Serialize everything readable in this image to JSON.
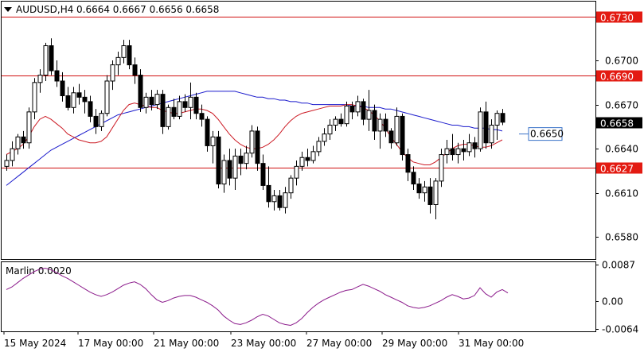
{
  "header": {
    "symbol_timeframe": "AUDUSD,H4",
    "ohlc": "0.6664 0.6667 0.6656 0.6658"
  },
  "indicator": {
    "label": "Marlin 0.0020"
  },
  "colors": {
    "candle": "#000000",
    "ma_blue": "#1a1acc",
    "ma_red": "#cc1a24",
    "level_line": "#d01010",
    "level_label_bg": "#e31b12",
    "current_price_bg": "#000000",
    "annotation": "#3a73c8",
    "oscillator": "#8b1a8b",
    "grid": "#000000"
  },
  "chart_data": [
    {
      "type": "candlestick",
      "title": "AUDUSD,H4",
      "ylim": [
        0.6565,
        0.674
      ],
      "y_tick_labels": [
        "0.6580",
        "0.6610",
        "0.6640",
        "0.6670",
        "0.6700"
      ],
      "x_tick_labels": [
        "15 May 2024",
        "17 May 00:00",
        "21 May 00:00",
        "23 May 00:00",
        "27 May 00:00",
        "29 May 00:00",
        "31 May 00:00"
      ],
      "horizontal_levels": [
        {
          "label": "0.6730",
          "value": 0.673
        },
        {
          "label": "0.6690",
          "value": 0.669
        },
        {
          "label": "0.6627",
          "value": 0.6627
        }
      ],
      "current_price": {
        "label": "0.6658",
        "value": 0.6658
      },
      "annotation": {
        "label": "0.6650",
        "value": 0.665
      },
      "candles": [
        [
          0.6628,
          0.6636,
          0.6625,
          0.6632
        ],
        [
          0.6632,
          0.6645,
          0.6628,
          0.664
        ],
        [
          0.664,
          0.665,
          0.6636,
          0.6648
        ],
        [
          0.6648,
          0.6652,
          0.664,
          0.6644
        ],
        [
          0.6644,
          0.6668,
          0.664,
          0.6665
        ],
        [
          0.6665,
          0.6688,
          0.666,
          0.6685
        ],
        [
          0.6685,
          0.6694,
          0.6678,
          0.669
        ],
        [
          0.669,
          0.6712,
          0.6686,
          0.671
        ],
        [
          0.671,
          0.6715,
          0.669,
          0.6693
        ],
        [
          0.6693,
          0.67,
          0.6682,
          0.6686
        ],
        [
          0.6686,
          0.6692,
          0.6672,
          0.6676
        ],
        [
          0.6676,
          0.6682,
          0.6666,
          0.6668
        ],
        [
          0.6668,
          0.6682,
          0.6664,
          0.6678
        ],
        [
          0.6678,
          0.6684,
          0.667,
          0.6675
        ],
        [
          0.6675,
          0.668,
          0.6664,
          0.6672
        ],
        [
          0.6672,
          0.6676,
          0.6658,
          0.6662
        ],
        [
          0.6662,
          0.6667,
          0.665,
          0.6655
        ],
        [
          0.6655,
          0.6666,
          0.6652,
          0.6664
        ],
        [
          0.6664,
          0.669,
          0.6662,
          0.6686
        ],
        [
          0.6686,
          0.67,
          0.668,
          0.6697
        ],
        [
          0.6697,
          0.6706,
          0.669,
          0.6702
        ],
        [
          0.6702,
          0.6714,
          0.6698,
          0.671
        ],
        [
          0.671,
          0.6714,
          0.6694,
          0.6697
        ],
        [
          0.6697,
          0.6702,
          0.6684,
          0.669
        ],
        [
          0.669,
          0.6694,
          0.6665,
          0.6668
        ],
        [
          0.6668,
          0.6678,
          0.6664,
          0.6675
        ],
        [
          0.6675,
          0.668,
          0.6666,
          0.667
        ],
        [
          0.667,
          0.668,
          0.6667,
          0.6677
        ],
        [
          0.6677,
          0.668,
          0.665,
          0.6655
        ],
        [
          0.6655,
          0.667,
          0.6653,
          0.6668
        ],
        [
          0.6668,
          0.6674,
          0.666,
          0.6662
        ],
        [
          0.6662,
          0.6676,
          0.666,
          0.6672
        ],
        [
          0.6672,
          0.6677,
          0.6665,
          0.6668
        ],
        [
          0.6668,
          0.6685,
          0.666,
          0.6675
        ],
        [
          0.6675,
          0.6678,
          0.666,
          0.6664
        ],
        [
          0.6664,
          0.667,
          0.6655,
          0.666
        ],
        [
          0.666,
          0.6662,
          0.6638,
          0.6642
        ],
        [
          0.6642,
          0.6652,
          0.663,
          0.6648
        ],
        [
          0.6648,
          0.6652,
          0.6613,
          0.6616
        ],
        [
          0.6616,
          0.6636,
          0.661,
          0.6632
        ],
        [
          0.6632,
          0.664,
          0.6615,
          0.662
        ],
        [
          0.662,
          0.664,
          0.6612,
          0.6635
        ],
        [
          0.6635,
          0.664,
          0.6622,
          0.663
        ],
        [
          0.663,
          0.6642,
          0.6626,
          0.6637
        ],
        [
          0.6637,
          0.6656,
          0.6634,
          0.6652
        ],
        [
          0.6652,
          0.6655,
          0.6625,
          0.663
        ],
        [
          0.663,
          0.6636,
          0.6612,
          0.6615
        ],
        [
          0.6615,
          0.6628,
          0.66,
          0.6604
        ],
        [
          0.6604,
          0.6612,
          0.6598,
          0.6608
        ],
        [
          0.6608,
          0.6612,
          0.6598,
          0.66
        ],
        [
          0.66,
          0.6614,
          0.6596,
          0.661
        ],
        [
          0.661,
          0.6622,
          0.6606,
          0.662
        ],
        [
          0.662,
          0.6632,
          0.6615,
          0.6628
        ],
        [
          0.6628,
          0.6638,
          0.6625,
          0.6634
        ],
        [
          0.6634,
          0.664,
          0.6628,
          0.6632
        ],
        [
          0.6632,
          0.6642,
          0.663,
          0.6638
        ],
        [
          0.6638,
          0.6648,
          0.6635,
          0.6645
        ],
        [
          0.6645,
          0.6654,
          0.6642,
          0.665
        ],
        [
          0.665,
          0.666,
          0.6646,
          0.6656
        ],
        [
          0.6656,
          0.6662,
          0.6652,
          0.666
        ],
        [
          0.666,
          0.6664,
          0.6655,
          0.6657
        ],
        [
          0.6657,
          0.6672,
          0.6655,
          0.6669
        ],
        [
          0.6669,
          0.6672,
          0.666,
          0.6665
        ],
        [
          0.6665,
          0.6676,
          0.6662,
          0.6672
        ],
        [
          0.6672,
          0.6674,
          0.6656,
          0.666
        ],
        [
          0.666,
          0.668,
          0.6652,
          0.6666
        ],
        [
          0.6666,
          0.667,
          0.6646,
          0.6652
        ],
        [
          0.6652,
          0.6664,
          0.664,
          0.666
        ],
        [
          0.666,
          0.6664,
          0.6648,
          0.6652
        ],
        [
          0.6652,
          0.6654,
          0.664,
          0.6644
        ],
        [
          0.6644,
          0.6668,
          0.6642,
          0.6662
        ],
        [
          0.6662,
          0.6664,
          0.6632,
          0.6636
        ],
        [
          0.6636,
          0.664,
          0.6618,
          0.6624
        ],
        [
          0.6624,
          0.6628,
          0.6612,
          0.6616
        ],
        [
          0.6616,
          0.662,
          0.6606,
          0.661
        ],
        [
          0.661,
          0.6618,
          0.6604,
          0.6614
        ],
        [
          0.6614,
          0.662,
          0.6596,
          0.6602
        ],
        [
          0.6602,
          0.662,
          0.6592,
          0.6618
        ],
        [
          0.6618,
          0.664,
          0.6614,
          0.6636
        ],
        [
          0.6636,
          0.6646,
          0.663,
          0.664
        ],
        [
          0.664,
          0.665,
          0.6632,
          0.6636
        ],
        [
          0.6636,
          0.6644,
          0.663,
          0.664
        ],
        [
          0.664,
          0.6646,
          0.6632,
          0.6638
        ],
        [
          0.6638,
          0.665,
          0.6635,
          0.6644
        ],
        [
          0.6644,
          0.6648,
          0.6634,
          0.664
        ],
        [
          0.664,
          0.6668,
          0.6638,
          0.6665
        ],
        [
          0.6665,
          0.6672,
          0.664,
          0.6644
        ],
        [
          0.6644,
          0.666,
          0.664,
          0.6656
        ],
        [
          0.6656,
          0.6666,
          0.6646,
          0.6664
        ],
        [
          0.6664,
          0.6667,
          0.6656,
          0.6658
        ]
      ],
      "ma_blue": [
        0.6615,
        0.6618,
        0.6621,
        0.6624,
        0.6627,
        0.663,
        0.6633,
        0.6636,
        0.6639,
        0.6641,
        0.6643,
        0.6645,
        0.6647,
        0.6649,
        0.6651,
        0.6653,
        0.6655,
        0.6657,
        0.6659,
        0.6661,
        0.6663,
        0.6664,
        0.6665,
        0.6666,
        0.6667,
        0.6668,
        0.6669,
        0.667,
        0.6671,
        0.6672,
        0.6673,
        0.6674,
        0.6675,
        0.6676,
        0.6677,
        0.6678,
        0.6679,
        0.6679,
        0.6679,
        0.6679,
        0.6679,
        0.6679,
        0.6678,
        0.6677,
        0.6676,
        0.6675,
        0.6675,
        0.6674,
        0.6674,
        0.6673,
        0.6673,
        0.6672,
        0.6672,
        0.6671,
        0.6671,
        0.667,
        0.667,
        0.667,
        0.667,
        0.667,
        0.667,
        0.667,
        0.6669,
        0.6669,
        0.6669,
        0.6668,
        0.6668,
        0.6668,
        0.6667,
        0.6667,
        0.6666,
        0.6665,
        0.6664,
        0.6663,
        0.6662,
        0.6661,
        0.666,
        0.6659,
        0.6658,
        0.6657,
        0.6656,
        0.6656,
        0.6655,
        0.6655,
        0.6654,
        0.6654,
        0.6654,
        0.6653,
        0.6653,
        0.6652
      ],
      "ma_red": [
        0.6636,
        0.6638,
        0.664,
        0.6643,
        0.6648,
        0.6655,
        0.666,
        0.6662,
        0.666,
        0.6657,
        0.6654,
        0.665,
        0.6648,
        0.6646,
        0.6645,
        0.6644,
        0.6644,
        0.6645,
        0.6648,
        0.6654,
        0.666,
        0.6666,
        0.667,
        0.6671,
        0.667,
        0.6669,
        0.6668,
        0.6668,
        0.6666,
        0.6665,
        0.6664,
        0.6664,
        0.6665,
        0.6666,
        0.6667,
        0.6667,
        0.6666,
        0.6664,
        0.666,
        0.6655,
        0.665,
        0.6646,
        0.6643,
        0.6641,
        0.664,
        0.664,
        0.6641,
        0.6643,
        0.6646,
        0.665,
        0.6655,
        0.6659,
        0.6662,
        0.6664,
        0.6665,
        0.6666,
        0.6667,
        0.6668,
        0.6669,
        0.6669,
        0.6669,
        0.667,
        0.667,
        0.6669,
        0.6668,
        0.6666,
        0.6663,
        0.6659,
        0.6654,
        0.6648,
        0.6643,
        0.6638,
        0.6634,
        0.6631,
        0.663,
        0.6629,
        0.6629,
        0.6631,
        0.6634,
        0.6637,
        0.664,
        0.6642,
        0.6643,
        0.6643,
        0.6642,
        0.6641,
        0.6641,
        0.6642,
        0.6644,
        0.6646
      ]
    },
    {
      "type": "line",
      "title": "Marlin 0.0020",
      "ylim": [
        -0.007,
        0.0092
      ],
      "y_tick_labels": [
        "0.0087",
        "0.00",
        "-0.0064"
      ],
      "series": [
        {
          "values": [
            0.0028,
            0.0034,
            0.0044,
            0.0054,
            0.0062,
            0.007,
            0.0076,
            0.0078,
            0.0074,
            0.0068,
            0.006,
            0.0054,
            0.0046,
            0.0038,
            0.003,
            0.0022,
            0.0016,
            0.0012,
            0.0016,
            0.0022,
            0.003,
            0.0038,
            0.0043,
            0.0046,
            0.004,
            0.003,
            0.0016,
            0.0004,
            -0.0002,
            0.0002,
            0.0008,
            0.0012,
            0.0014,
            0.0014,
            0.001,
            0.0004,
            -0.0002,
            -0.001,
            -0.002,
            -0.0034,
            -0.0044,
            -0.0052,
            -0.0054,
            -0.005,
            -0.0044,
            -0.0036,
            -0.003,
            -0.0034,
            -0.0042,
            -0.005,
            -0.0054,
            -0.0056,
            -0.005,
            -0.004,
            -0.0026,
            -0.0014,
            -0.0004,
            0.0004,
            0.001,
            0.0016,
            0.0022,
            0.0026,
            0.0028,
            0.0034,
            0.004,
            0.0036,
            0.003,
            0.0024,
            0.0016,
            0.001,
            0.0004,
            -0.0002,
            -0.001,
            -0.0014,
            -0.0016,
            -0.0014,
            -0.001,
            -0.0004,
            0.0002,
            0.001,
            0.0016,
            0.0012,
            0.0006,
            0.0008,
            0.0014,
            0.0032,
            0.0018,
            0.001,
            0.0022,
            0.0028,
            0.002
          ]
        }
      ]
    }
  ]
}
